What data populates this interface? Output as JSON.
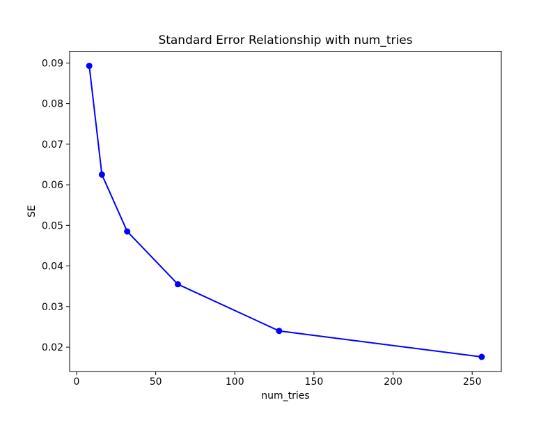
{
  "figure": {
    "background_color": "#ffffff",
    "frame_color": "#000000"
  },
  "chart_data": {
    "type": "line",
    "title": "Standard Error Relationship with num_tries",
    "xlabel": "num_tries",
    "ylabel": "SE",
    "x": [
      8,
      16,
      32,
      64,
      128,
      256
    ],
    "y": [
      0.0893,
      0.0625,
      0.0485,
      0.0355,
      0.024,
      0.0176
    ],
    "line_color": "#0000ff",
    "marker": "circle",
    "marker_color": "#0000ff",
    "xticks": [
      0,
      50,
      100,
      150,
      200,
      250
    ],
    "yticks": [
      0.02,
      0.03,
      0.04,
      0.05,
      0.06,
      0.07,
      0.08,
      0.09
    ],
    "ytick_decimals": 2,
    "xlim": [
      -4.4,
      268.4
    ],
    "ylim": [
      0.014,
      0.0929
    ],
    "grid": false,
    "legend": "none"
  }
}
